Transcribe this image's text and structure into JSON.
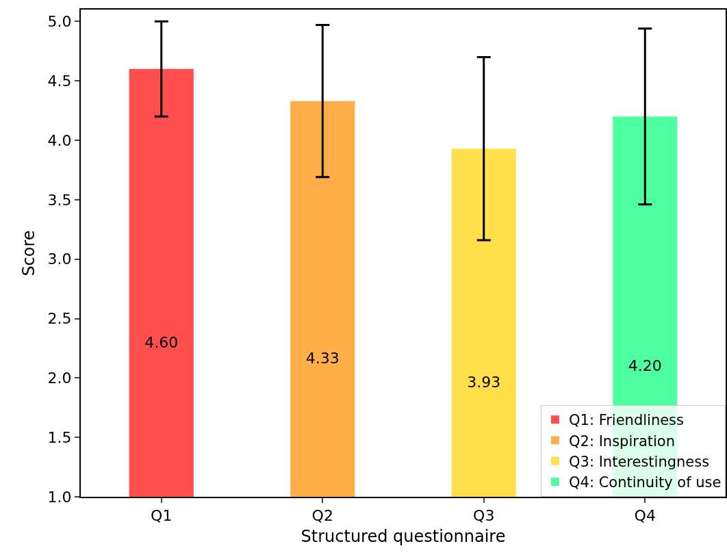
{
  "chart_data": {
    "type": "bar",
    "xlabel": "Structured questionnaire",
    "ylabel": "Score",
    "categories": [
      "Q1",
      "Q2",
      "Q3",
      "Q4"
    ],
    "series": [
      {
        "name": "Q1: Friendliness",
        "color": "#ff4e4e",
        "values": [
          4.6,
          null,
          null,
          null
        ],
        "errors": [
          0.4,
          null,
          null,
          null
        ],
        "value_labels": [
          "4.60",
          null,
          null,
          null
        ]
      },
      {
        "name": "Q2: Inspiration",
        "color": "#ffae4a",
        "values": [
          null,
          4.33,
          null,
          null
        ],
        "errors": [
          null,
          0.64,
          null,
          null
        ],
        "value_labels": [
          null,
          "4.33",
          null,
          null
        ]
      },
      {
        "name": "Q3: Interestingness",
        "color": "#ffe04a",
        "values": [
          null,
          null,
          3.93,
          null
        ],
        "errors": [
          null,
          null,
          0.77,
          null
        ],
        "value_labels": [
          null,
          null,
          "3.93",
          null
        ]
      },
      {
        "name": "Q4: Continuity of use",
        "color": "#4effa2",
        "values": [
          null,
          null,
          null,
          4.2
        ],
        "errors": [
          null,
          null,
          null,
          0.74
        ],
        "value_labels": [
          null,
          null,
          null,
          "4.20"
        ]
      }
    ],
    "ylim": [
      1.0,
      5.1
    ],
    "yticks": [
      {
        "value": 1.0,
        "label": "1.0"
      },
      {
        "value": 1.5,
        "label": "1.5"
      },
      {
        "value": 2.0,
        "label": "2.0"
      },
      {
        "value": 2.5,
        "label": "2.5"
      },
      {
        "value": 3.0,
        "label": "3.0"
      },
      {
        "value": 3.5,
        "label": "3.5"
      },
      {
        "value": 4.0,
        "label": "4.0"
      },
      {
        "value": 4.5,
        "label": "4.5"
      },
      {
        "value": 5.0,
        "label": "5.0"
      }
    ],
    "grid": false,
    "legend": "bottom right"
  }
}
